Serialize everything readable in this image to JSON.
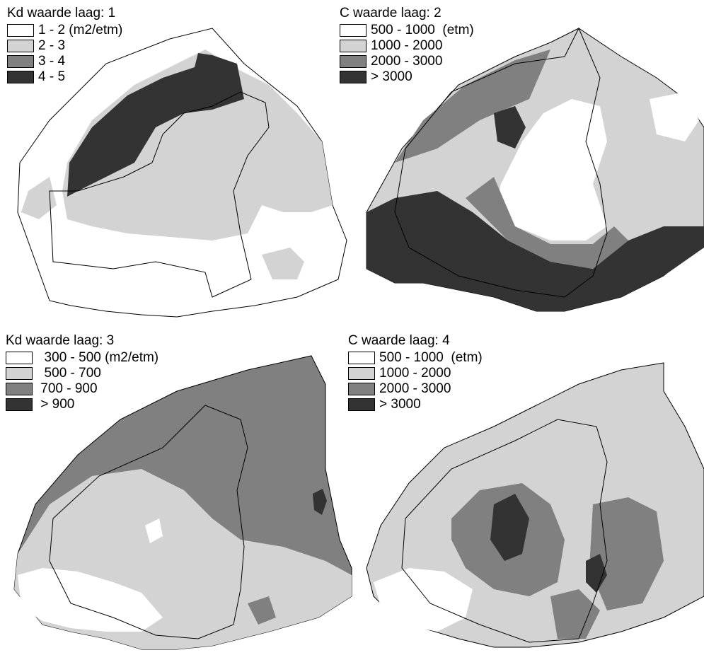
{
  "colors": {
    "white": "#ffffff",
    "light": "#d3d3d3",
    "mid": "#808080",
    "dark": "#333333",
    "outline": "#000000"
  },
  "panels": [
    {
      "id": "p1",
      "title": "Kd waarde  laag:  1",
      "legend": [
        {
          "label": "1 - 2 (m2/etm)",
          "color": "#ffffff"
        },
        {
          "label": "2 - 3",
          "color": "#d3d3d3"
        },
        {
          "label": "3 - 4",
          "color": "#808080"
        },
        {
          "label": "4 - 5",
          "color": "#333333"
        }
      ]
    },
    {
      "id": "p2",
      "title": "C waarde  laag:  2",
      "legend": [
        {
          "label": "500 - 1000  (etm)",
          "color": "#ffffff"
        },
        {
          "label": "1000 - 2000",
          "color": "#d3d3d3"
        },
        {
          "label": "2000 - 3000",
          "color": "#808080"
        },
        {
          "label": "> 3000",
          "color": "#333333"
        }
      ]
    },
    {
      "id": "p3",
      "title": "Kd waarde laag:  3",
      "legend": [
        {
          "label": "  300 - 500 (m2/etm)",
          "color": "#ffffff"
        },
        {
          "label": "  500 - 700",
          "color": "#d3d3d3"
        },
        {
          "label": " 700 - 900",
          "color": "#808080"
        },
        {
          "label": " > 900",
          "color": "#333333"
        }
      ]
    },
    {
      "id": "p4",
      "title": "C waarde  laag:  4",
      "legend": [
        {
          "label": "500 - 1000  (etm)",
          "color": "#ffffff"
        },
        {
          "label": "1000 - 2000",
          "color": "#d3d3d3"
        },
        {
          "label": "2000 - 3000",
          "color": "#808080"
        },
        {
          "label": "> 3000",
          "color": "#333333"
        }
      ]
    }
  ]
}
